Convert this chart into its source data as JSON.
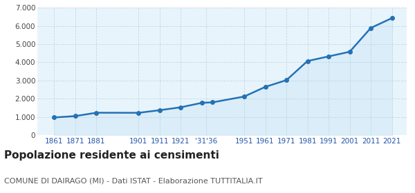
{
  "years": [
    1861,
    1871,
    1881,
    1901,
    1911,
    1921,
    1931,
    1936,
    1951,
    1961,
    1971,
    1981,
    1991,
    2001,
    2011,
    2021
  ],
  "population": [
    970,
    1045,
    1230,
    1225,
    1370,
    1530,
    1775,
    1800,
    2120,
    2650,
    3020,
    4070,
    4325,
    4580,
    5890,
    6430
  ],
  "line_color": "#2471b5",
  "fill_color": "#daedf8",
  "bg_color": "#e8f4fb",
  "title": "Popolazione residente ai censimenti",
  "subtitle": "COMUNE DI DAIRAGO (MI) - Dati ISTAT - Elaborazione TUTTITALIA.IT",
  "title_fontsize": 11,
  "subtitle_fontsize": 8,
  "ylim": [
    0,
    7000
  ],
  "yticks": [
    0,
    1000,
    2000,
    3000,
    4000,
    5000,
    6000,
    7000
  ],
  "grid_color": "#c0d8e8",
  "marker_size": 4,
  "line_width": 1.8,
  "x_positions": [
    1861,
    1871,
    1881,
    1901,
    1911,
    1921,
    1933,
    1951,
    1961,
    1971,
    1981,
    1991,
    2001,
    2011,
    2021
  ],
  "x_labels": [
    "1861",
    "1871",
    "1881",
    "1901",
    "1911",
    "1921",
    "'31'36",
    "1951",
    "1961",
    "1971",
    "1981",
    "1991",
    "2001",
    "2011",
    "2021"
  ]
}
